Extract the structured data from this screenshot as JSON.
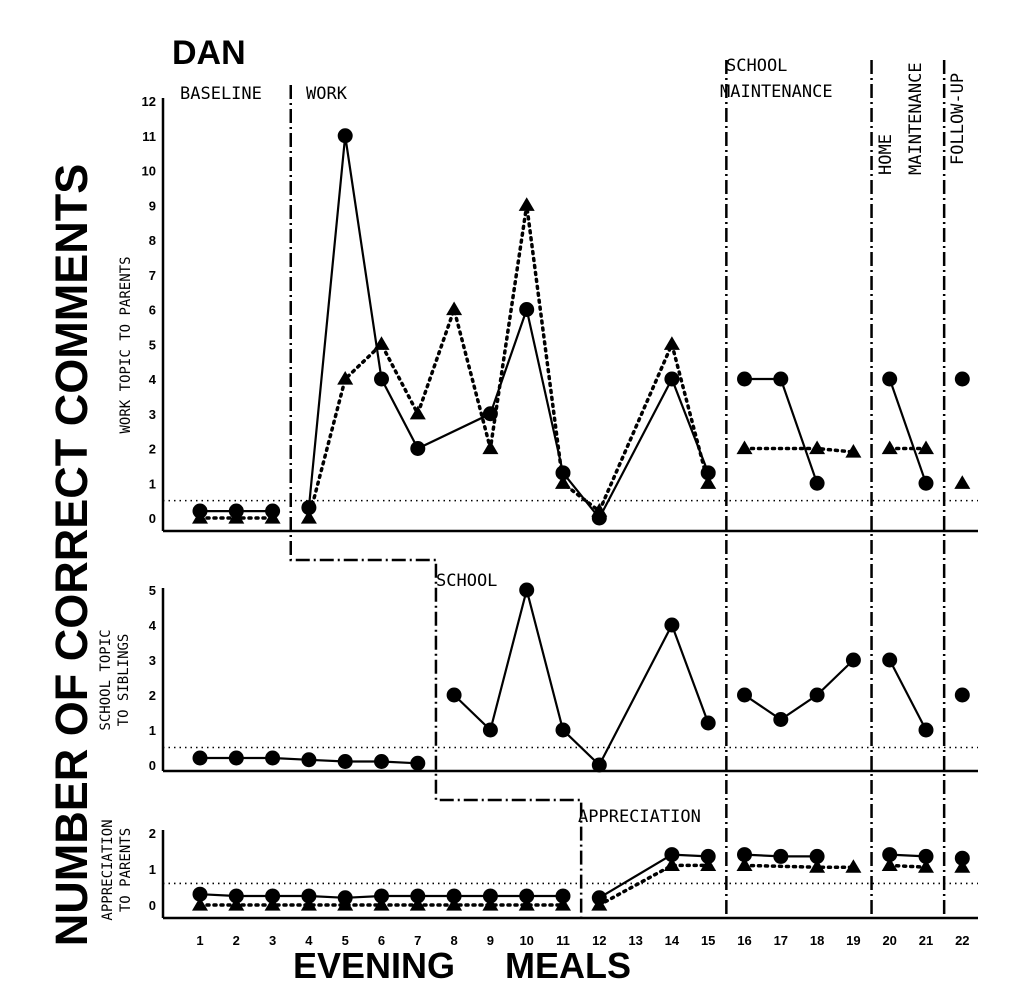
{
  "chart_data": {
    "type": "line",
    "title": "DAN",
    "ylabel": "NUMBER OF CORRECT COMMENTS",
    "xlabel": "EVENING MEALS",
    "x": [
      1,
      2,
      3,
      4,
      5,
      6,
      7,
      8,
      9,
      10,
      11,
      12,
      13,
      14,
      15,
      16,
      17,
      18,
      19,
      20,
      21,
      22
    ],
    "xticks": [
      "1",
      "2",
      "3",
      "4",
      "5",
      "6",
      "7",
      "8",
      "9",
      "10",
      "11",
      "12",
      "13",
      "14",
      "15",
      "16",
      "17",
      "18",
      "19",
      "20",
      "21",
      "22"
    ],
    "phases": [
      "BASELINE",
      "WORK",
      "SCHOOL",
      "APPRECIATION",
      "SCHOOL",
      "MAINTENANCE",
      "HOME",
      "MAINTENANCE",
      "FOLLOW-UP"
    ],
    "panels": [
      {
        "ylabel": [
          "WORK TOPIC TO PARENTS"
        ],
        "yticks": [
          "0",
          "1",
          "2",
          "3",
          "4",
          "5",
          "6",
          "7",
          "8",
          "9",
          "10",
          "11",
          "12"
        ],
        "ylim": [
          0,
          12
        ],
        "criterion": 0.5,
        "series": [
          {
            "marker": "circle",
            "line": "solid",
            "points": [
              [
                1,
                0.2
              ],
              [
                2,
                0.2
              ],
              [
                3,
                0.2
              ],
              [
                4,
                0.3
              ],
              [
                5,
                11
              ],
              [
                6,
                4
              ],
              [
                7,
                2
              ],
              [
                9,
                3
              ],
              [
                10,
                6
              ],
              [
                11,
                1.3
              ],
              [
                12,
                0
              ],
              [
                14,
                4
              ],
              [
                15,
                1.3
              ],
              [
                16,
                4
              ],
              [
                17,
                4
              ],
              [
                18,
                1
              ],
              [
                20,
                4
              ],
              [
                21,
                1
              ],
              [
                22,
                4
              ]
            ],
            "segments": [
              [
                1,
                3
              ],
              [
                4,
                15
              ],
              [
                16,
                18
              ],
              [
                20,
                21
              ]
            ]
          },
          {
            "marker": "triangle",
            "line": "dotted",
            "points": [
              [
                1,
                0
              ],
              [
                2,
                0
              ],
              [
                3,
                0
              ],
              [
                4,
                0
              ],
              [
                5,
                4
              ],
              [
                6,
                5
              ],
              [
                7,
                3
              ],
              [
                8,
                6
              ],
              [
                9,
                2
              ],
              [
                10,
                9
              ],
              [
                11,
                1
              ],
              [
                12,
                0.2
              ],
              [
                14,
                5
              ],
              [
                15,
                1
              ],
              [
                16,
                2
              ],
              [
                18,
                2
              ],
              [
                19,
                1.9
              ],
              [
                20,
                2
              ],
              [
                21,
                2
              ],
              [
                22,
                1
              ]
            ],
            "segments": [
              [
                1,
                3
              ],
              [
                4,
                15
              ],
              [
                16,
                19
              ],
              [
                20,
                21
              ]
            ]
          }
        ]
      },
      {
        "ylabel": [
          "SCHOOL TOPIC",
          "TO SIBLINGS"
        ],
        "yticks": [
          "0",
          "1",
          "2",
          "3",
          "4",
          "5"
        ],
        "ylim": [
          0,
          5
        ],
        "criterion": 0.5,
        "series": [
          {
            "marker": "circle",
            "line": "solid",
            "points": [
              [
                1,
                0.2
              ],
              [
                2,
                0.2
              ],
              [
                3,
                0.2
              ],
              [
                4,
                0.15
              ],
              [
                5,
                0.1
              ],
              [
                6,
                0.1
              ],
              [
                7,
                0.05
              ],
              [
                8,
                2
              ],
              [
                9,
                1
              ],
              [
                10,
                5
              ],
              [
                11,
                1
              ],
              [
                12,
                0
              ],
              [
                14,
                4
              ],
              [
                15,
                1.2
              ],
              [
                16,
                2
              ],
              [
                17,
                1.3
              ],
              [
                18,
                2
              ],
              [
                19,
                3
              ],
              [
                20,
                3
              ],
              [
                21,
                1
              ],
              [
                22,
                2
              ]
            ],
            "segments": [
              [
                1,
                7
              ],
              [
                8,
                15
              ],
              [
                16,
                19
              ],
              [
                20,
                21
              ]
            ]
          }
        ]
      },
      {
        "ylabel": [
          "APPRECIATION",
          "TO PARENTS"
        ],
        "yticks": [
          "0",
          "1",
          "2"
        ],
        "ylim": [
          0,
          2
        ],
        "criterion": 0.6,
        "series": [
          {
            "marker": "circle",
            "line": "solid",
            "points": [
              [
                1,
                0.3
              ],
              [
                2,
                0.25
              ],
              [
                3,
                0.25
              ],
              [
                4,
                0.25
              ],
              [
                5,
                0.2
              ],
              [
                6,
                0.25
              ],
              [
                7,
                0.25
              ],
              [
                8,
                0.25
              ],
              [
                9,
                0.25
              ],
              [
                10,
                0.25
              ],
              [
                11,
                0.25
              ],
              [
                12,
                0.2
              ],
              [
                14,
                1.4
              ],
              [
                15,
                1.35
              ],
              [
                16,
                1.4
              ],
              [
                17,
                1.35
              ],
              [
                18,
                1.35
              ],
              [
                20,
                1.4
              ],
              [
                21,
                1.35
              ],
              [
                22,
                1.3
              ]
            ],
            "segments": [
              [
                1,
                11
              ],
              [
                12,
                15
              ],
              [
                16,
                18
              ],
              [
                20,
                21
              ]
            ]
          },
          {
            "marker": "triangle",
            "line": "dotted",
            "points": [
              [
                1,
                0
              ],
              [
                2,
                0
              ],
              [
                3,
                0
              ],
              [
                4,
                0
              ],
              [
                5,
                0
              ],
              [
                6,
                0
              ],
              [
                7,
                0
              ],
              [
                8,
                0
              ],
              [
                9,
                0
              ],
              [
                10,
                0
              ],
              [
                11,
                0
              ],
              [
                12,
                0
              ],
              [
                14,
                1.1
              ],
              [
                15,
                1.1
              ],
              [
                16,
                1.1
              ],
              [
                18,
                1.05
              ],
              [
                19,
                1.05
              ],
              [
                20,
                1.1
              ],
              [
                21,
                1.05
              ],
              [
                22,
                1.05
              ]
            ],
            "segments": [
              [
                1,
                11
              ],
              [
                12,
                15
              ],
              [
                16,
                19
              ],
              [
                20,
                21
              ]
            ]
          }
        ]
      }
    ]
  }
}
